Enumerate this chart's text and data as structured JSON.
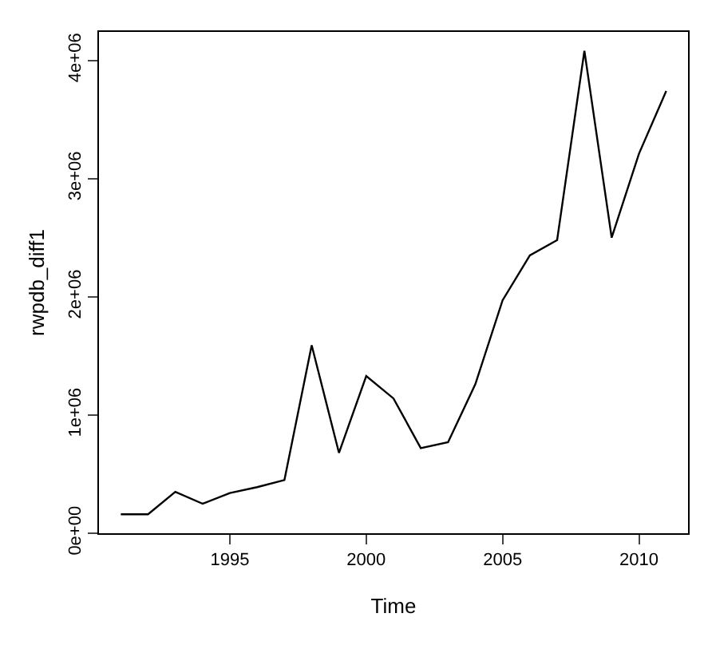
{
  "chart_data": {
    "type": "line",
    "xlabel": "Time",
    "ylabel": "rwpdb_diff1",
    "x": [
      1991,
      1992,
      1993,
      1994,
      1995,
      1996,
      1997,
      1998,
      1999,
      2000,
      2001,
      2002,
      2003,
      2004,
      2005,
      2006,
      2007,
      2008,
      2009,
      2010,
      2011
    ],
    "series": [
      {
        "color": "#000000",
        "values": [
          160000,
          160000,
          350000,
          250000,
          340000,
          390000,
          450000,
          1590000,
          680000,
          1330000,
          1140000,
          720000,
          770000,
          1260000,
          1970000,
          2350000,
          2480000,
          4080000,
          2500000,
          3210000,
          3740000
        ]
      }
    ],
    "xlim": [
      1990.2,
      2011.8
    ],
    "xticks": [
      1995,
      2000,
      2005,
      2010
    ],
    "ylim": [
      0,
      4240000
    ],
    "yticks": [
      {
        "value": 0,
        "label": "0e+00"
      },
      {
        "value": 1000000,
        "label": "1e+06"
      },
      {
        "value": 2000000,
        "label": "2e+06"
      },
      {
        "value": 3000000,
        "label": "3e+06"
      },
      {
        "value": 4000000,
        "label": "4e+06"
      }
    ],
    "grid": false,
    "legend": false,
    "marker": "none",
    "line_style": "solid"
  }
}
